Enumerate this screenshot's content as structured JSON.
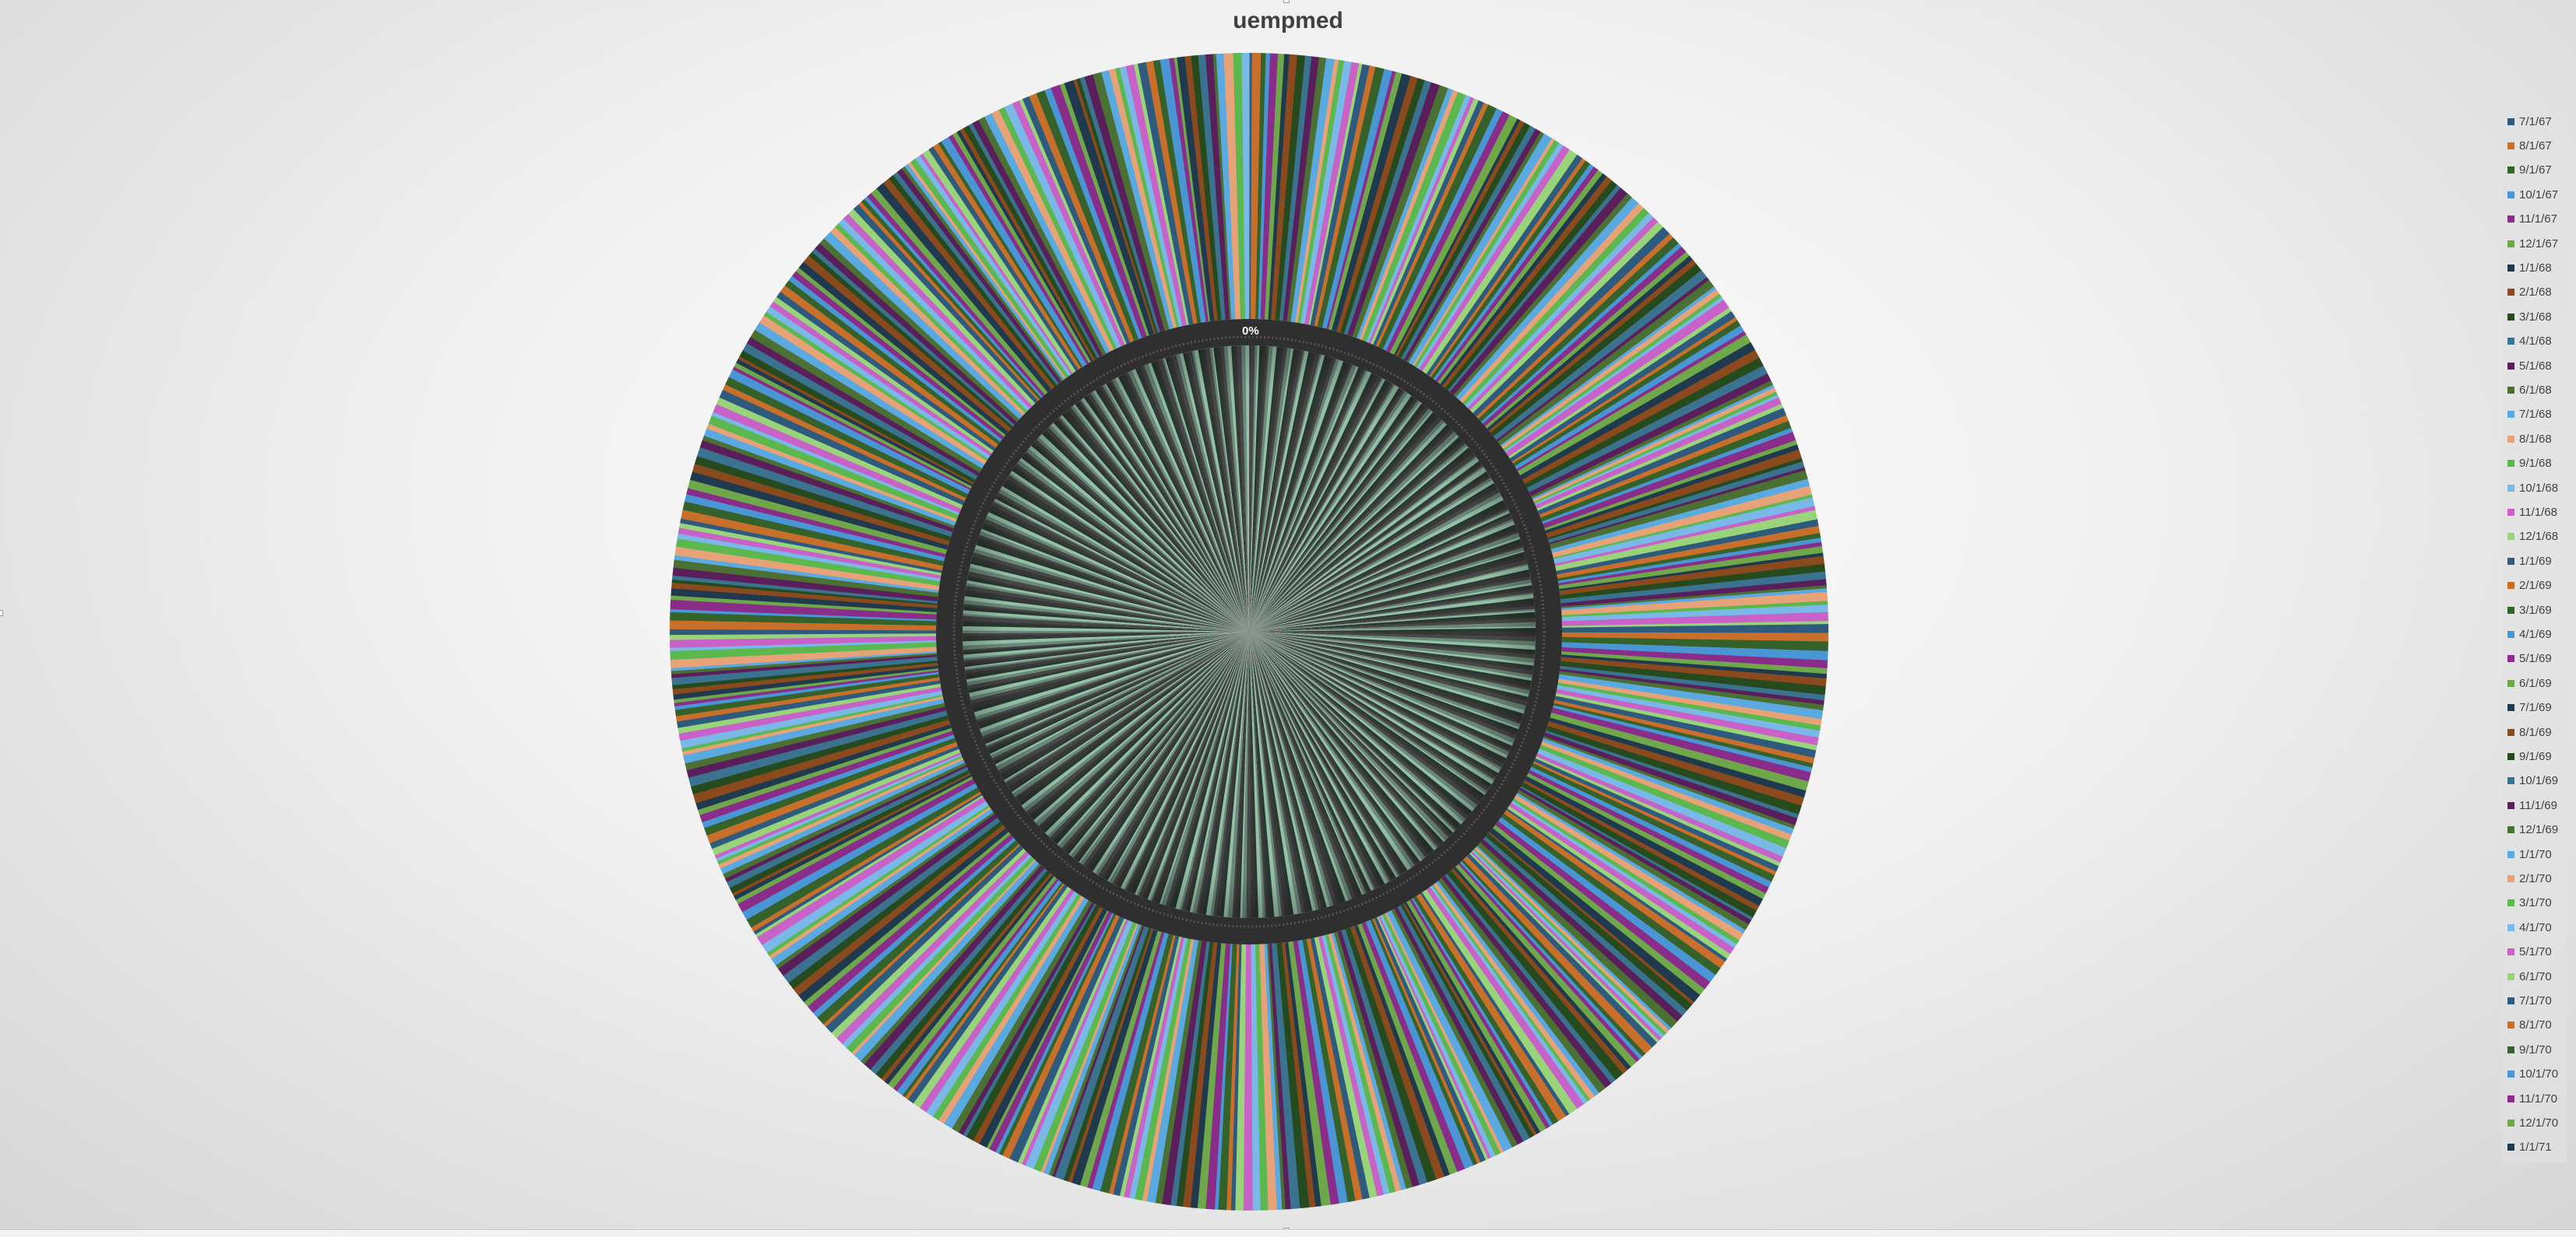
{
  "chart_data": {
    "type": "pie",
    "variant": "doughnut-with-inner-ring",
    "title": "uempmed",
    "legend_position": "right",
    "visible_label": "0%",
    "legend_entries": [
      "7/1/67",
      "8/1/67",
      "9/1/67",
      "10/1/67",
      "11/1/67",
      "12/1/67",
      "1/1/68",
      "2/1/68",
      "3/1/68",
      "4/1/68",
      "5/1/68",
      "6/1/68",
      "7/1/68",
      "8/1/68",
      "9/1/68",
      "10/1/68",
      "11/1/68",
      "12/1/68",
      "1/1/69",
      "2/1/69",
      "3/1/69",
      "4/1/69",
      "5/1/69",
      "6/1/69",
      "7/1/69",
      "8/1/69",
      "9/1/69",
      "10/1/69",
      "11/1/69",
      "12/1/69",
      "1/1/70",
      "2/1/70",
      "3/1/70",
      "4/1/70",
      "5/1/70",
      "6/1/70",
      "7/1/70",
      "8/1/70",
      "9/1/70",
      "10/1/70",
      "11/1/70",
      "12/1/70",
      "1/1/71"
    ],
    "slice_count_estimate": 574,
    "palette": [
      "#2e5a7e",
      "#c8702b",
      "#35612a",
      "#4a95d3",
      "#8a2d8a",
      "#6fa84a",
      "#1f3a4f",
      "#8a4a1e",
      "#254a1e",
      "#3a7290",
      "#5a1f5a",
      "#4a7033",
      "#5aa9e0",
      "#e8a278",
      "#5bb84e",
      "#7ab8e8",
      "#c862c8",
      "#9ad47a"
    ],
    "inner_ring_palette": [
      "#3a3a3a",
      "#4a4a4a",
      "#6f8f7f",
      "#9cc9b0",
      "#2a3a32"
    ]
  }
}
